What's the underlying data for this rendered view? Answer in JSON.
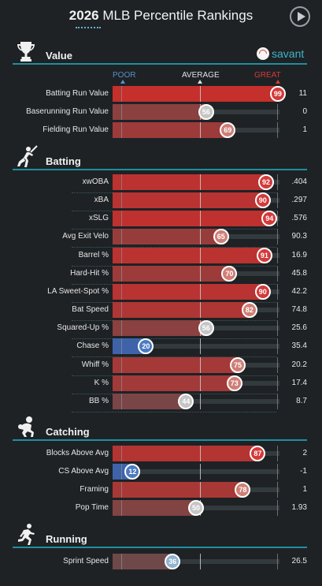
{
  "header": {
    "year": "2026",
    "title_rest": "MLB Percentile Rankings"
  },
  "savant_label": "savant",
  "scale": {
    "poor": "POOR",
    "average": "AVERAGE",
    "great": "GREAT",
    "poor_color": "#5b8fc9",
    "great_color": "#d63a3a"
  },
  "sections": [
    {
      "key": "value",
      "title": "Value",
      "icon": "trophy-icon",
      "rows": [
        {
          "metric": "Batting Run Value",
          "percentile": 99,
          "value": "11"
        },
        {
          "metric": "Baserunning Run Value",
          "percentile": 56,
          "value": "0"
        },
        {
          "metric": "Fielding Run Value",
          "percentile": 69,
          "value": "1"
        }
      ]
    },
    {
      "key": "batting",
      "title": "Batting",
      "icon": "batter-icon",
      "rows": [
        {
          "metric": "xwOBA",
          "percentile": 92,
          "value": ".404"
        },
        {
          "metric": "xBA",
          "percentile": 90,
          "value": ".297"
        },
        {
          "metric": "xSLG",
          "percentile": 94,
          "value": ".576"
        },
        {
          "metric": "Avg Exit Velo",
          "percentile": 65,
          "value": "90.3"
        },
        {
          "metric": "Barrel %",
          "percentile": 91,
          "value": "16.9"
        },
        {
          "metric": "Hard-Hit %",
          "percentile": 70,
          "value": "45.8"
        },
        {
          "metric": "LA Sweet-Spot %",
          "percentile": 90,
          "value": "42.2"
        },
        {
          "metric": "Bat Speed",
          "percentile": 82,
          "value": "74.8"
        },
        {
          "metric": "Squared-Up %",
          "percentile": 56,
          "value": "25.6"
        },
        {
          "metric": "Chase %",
          "percentile": 20,
          "value": "35.4"
        },
        {
          "metric": "Whiff %",
          "percentile": 75,
          "value": "20.2"
        },
        {
          "metric": "K %",
          "percentile": 73,
          "value": "17.4"
        },
        {
          "metric": "BB %",
          "percentile": 44,
          "value": "8.7"
        }
      ]
    },
    {
      "key": "catching",
      "title": "Catching",
      "icon": "catcher-icon",
      "rows": [
        {
          "metric": "Blocks Above Avg",
          "percentile": 87,
          "value": "2"
        },
        {
          "metric": "CS Above Avg",
          "percentile": 12,
          "value": "-1"
        },
        {
          "metric": "Framing",
          "percentile": 78,
          "value": "1"
        },
        {
          "metric": "Pop Time",
          "percentile": 50,
          "value": "1.93"
        }
      ]
    },
    {
      "key": "running",
      "title": "Running",
      "icon": "runner-icon",
      "rows": [
        {
          "metric": "Sprint Speed",
          "percentile": 36,
          "value": "26.5"
        }
      ]
    }
  ]
}
